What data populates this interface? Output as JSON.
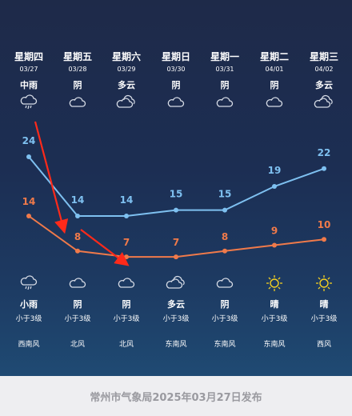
{
  "days": [
    {
      "weekday": "星期四",
      "date": "03/27",
      "day_cond": "中雨",
      "day_icon": "rain-cloud-icon",
      "high": 24,
      "low": 14,
      "night_cond": "小雨",
      "night_icon": "rain-cloud-icon",
      "wind": "小于3级",
      "wind_dir": "西南风"
    },
    {
      "weekday": "星期五",
      "date": "03/28",
      "day_cond": "阴",
      "day_icon": "cloud-icon",
      "high": 14,
      "low": 8,
      "night_cond": "阴",
      "night_icon": "cloud-icon",
      "wind": "小于3级",
      "wind_dir": "北风"
    },
    {
      "weekday": "星期六",
      "date": "03/29",
      "day_cond": "多云",
      "day_icon": "double-cloud-icon",
      "high": 14,
      "low": 7,
      "night_cond": "阴",
      "night_icon": "cloud-icon",
      "wind": "小于3级",
      "wind_dir": "北风"
    },
    {
      "weekday": "星期日",
      "date": "03/30",
      "day_cond": "阴",
      "day_icon": "cloud-icon",
      "high": 15,
      "low": 7,
      "night_cond": "多云",
      "night_icon": "double-cloud-icon",
      "wind": "小于3级",
      "wind_dir": "东南风"
    },
    {
      "weekday": "星期一",
      "date": "03/31",
      "day_cond": "阴",
      "day_icon": "cloud-icon",
      "high": 15,
      "low": 8,
      "night_cond": "阴",
      "night_icon": "cloud-icon",
      "wind": "小于3级",
      "wind_dir": "东南风"
    },
    {
      "weekday": "星期二",
      "date": "04/01",
      "day_cond": "阴",
      "day_icon": "cloud-icon",
      "high": 19,
      "low": 9,
      "night_cond": "晴",
      "night_icon": "sun-icon",
      "wind": "小于3级",
      "wind_dir": "东南风"
    },
    {
      "weekday": "星期三",
      "date": "04/02",
      "day_cond": "多云",
      "day_icon": "double-cloud-icon",
      "high": 22,
      "low": 10,
      "night_cond": "晴",
      "night_icon": "sun-icon",
      "wind": "小于3级",
      "wind_dir": "西风"
    }
  ],
  "colors": {
    "high_line": "#7ec0f0",
    "low_line": "#f07a4a",
    "annotation_arrow": "#ff2a1a",
    "sun": "#f5d020",
    "icon_stroke": "#d7dce6"
  },
  "footer": {
    "text": "常州市气象局2025年03月27日发布"
  }
}
